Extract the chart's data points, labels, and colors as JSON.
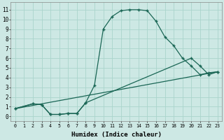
{
  "xlabel": "Humidex (Indice chaleur)",
  "background_color": "#cde8e4",
  "grid_color": "#aad4cc",
  "line_color": "#1a6655",
  "xlim": [
    -0.5,
    23.5
  ],
  "ylim": [
    -0.5,
    11.8
  ],
  "xticks": [
    0,
    1,
    2,
    3,
    4,
    5,
    6,
    7,
    8,
    9,
    10,
    11,
    12,
    13,
    14,
    15,
    16,
    17,
    18,
    19,
    20,
    21,
    22,
    23
  ],
  "yticks": [
    0,
    1,
    2,
    3,
    4,
    5,
    6,
    7,
    8,
    9,
    10,
    11
  ],
  "curve1_x": [
    0,
    2,
    3,
    4,
    5,
    6,
    7,
    8,
    9,
    10,
    11,
    12,
    13,
    14,
    15,
    16,
    17,
    18,
    19,
    20,
    21,
    22,
    23
  ],
  "curve1_y": [
    0.8,
    1.3,
    1.2,
    0.2,
    0.2,
    0.3,
    0.3,
    1.4,
    3.2,
    9.0,
    10.3,
    10.9,
    11.0,
    11.0,
    10.9,
    9.8,
    8.2,
    7.3,
    6.0,
    5.2,
    4.3,
    4.5,
    4.6
  ],
  "curve2_x": [
    0,
    2,
    3,
    4,
    5,
    6,
    7,
    8,
    20,
    21,
    22,
    23
  ],
  "curve2_y": [
    0.8,
    1.3,
    1.2,
    0.2,
    0.2,
    0.3,
    0.3,
    1.4,
    6.0,
    5.2,
    4.3,
    4.6
  ],
  "curve3_x": [
    0,
    23
  ],
  "curve3_y": [
    0.8,
    4.6
  ]
}
